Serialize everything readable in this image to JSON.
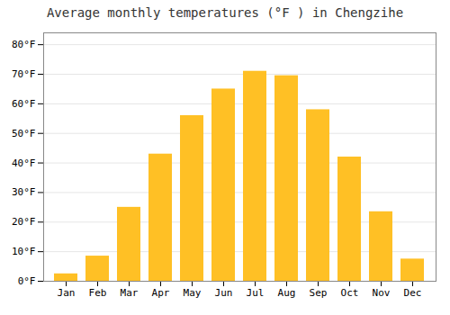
{
  "chart_data": {
    "type": "bar",
    "title": "Average monthly temperatures (°F ) in Chengzihe",
    "categories": [
      "Jan",
      "Feb",
      "Mar",
      "Apr",
      "May",
      "Jun",
      "Jul",
      "Aug",
      "Sep",
      "Oct",
      "Nov",
      "Dec"
    ],
    "values": [
      2.5,
      8.5,
      25,
      43,
      56,
      65,
      71,
      69.5,
      58,
      42,
      23.5,
      7.5
    ],
    "color": "#FFC025",
    "ylim": [
      0,
      84
    ],
    "yticks": [
      {
        "value": 0,
        "label": "0°F"
      },
      {
        "value": 10,
        "label": "10°F"
      },
      {
        "value": 20,
        "label": "20°F"
      },
      {
        "value": 30,
        "label": "30°F"
      },
      {
        "value": 40,
        "label": "40°F"
      },
      {
        "value": 50,
        "label": "50°F"
      },
      {
        "value": 60,
        "label": "60°F"
      },
      {
        "value": 70,
        "label": "70°F"
      },
      {
        "value": 80,
        "label": "80°F"
      }
    ],
    "grid": true
  }
}
